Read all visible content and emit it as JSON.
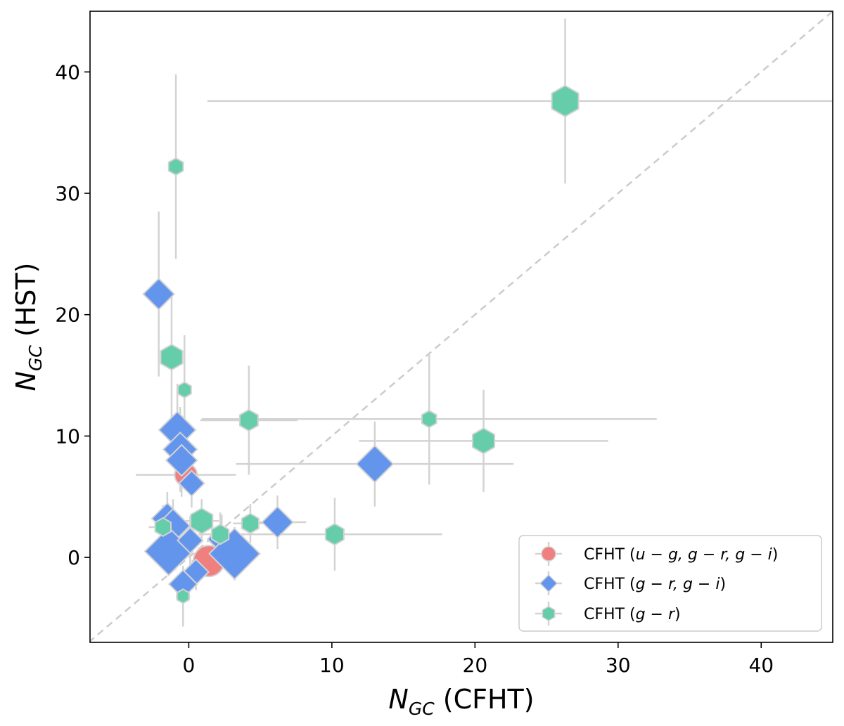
{
  "chart_data": {
    "type": "scatter",
    "title": "",
    "xlabel": {
      "symbol": "N",
      "subscript": "GC",
      "rest": " (CFHT)"
    },
    "ylabel": {
      "symbol": "N",
      "subscript": "GC",
      "rest": " (HST)"
    },
    "xlim": [
      -6.9,
      45
    ],
    "ylim": [
      -7,
      45
    ],
    "xticks": [
      0,
      10,
      20,
      30,
      40
    ],
    "yticks": [
      0,
      10,
      20,
      30,
      40
    ],
    "grid": false,
    "one_to_one_line": true,
    "legend_position": "bottom-right",
    "colors": {
      "errorbar": "#d3d3d3",
      "edge": "#d3d3d3",
      "diagonal": "#cccccc"
    },
    "series": [
      {
        "name": "ugr",
        "label_prefix": "CFHT (",
        "label_math": "u − g, g − r, g − i",
        "label_suffix": ")",
        "marker": "circle",
        "color": "#f08080",
        "points": [
          {
            "x": -0.2,
            "y": 6.8,
            "xerr": 3.5,
            "yerr": 0.7,
            "size": 16
          },
          {
            "x": 1.4,
            "y": -0.3,
            "xerr": 1.2,
            "yerr": 1.0,
            "size": 22
          }
        ]
      },
      {
        "name": "gr_gi",
        "label_prefix": "CFHT (",
        "label_math": "g − r, g − i",
        "label_suffix": ")",
        "marker": "diamond",
        "color": "#6495ed",
        "points": [
          {
            "x": -2.1,
            "y": 21.7,
            "xerr": 0.5,
            "yerr": 6.8,
            "size": 22
          },
          {
            "x": -0.8,
            "y": 10.5,
            "xerr": 0.5,
            "yerr": 3.8,
            "size": 26
          },
          {
            "x": -0.6,
            "y": 8.9,
            "xerr": 0.5,
            "yerr": 3.5,
            "size": 24
          },
          {
            "x": -0.5,
            "y": 8.0,
            "xerr": 0.5,
            "yerr": 3.0,
            "size": 22
          },
          {
            "x": 0.2,
            "y": 6.1,
            "xerr": 0.6,
            "yerr": 2.0,
            "size": 18
          },
          {
            "x": 13.0,
            "y": 7.7,
            "xerr": 9.7,
            "yerr": 3.5,
            "size": 26
          },
          {
            "x": 6.2,
            "y": 2.9,
            "xerr": 2.0,
            "yerr": 2.2,
            "size": 22
          },
          {
            "x": -1.5,
            "y": 3.2,
            "xerr": 1.0,
            "yerr": 2.2,
            "size": 22
          },
          {
            "x": -1.1,
            "y": 2.6,
            "xerr": 1.0,
            "yerr": 2.2,
            "size": 24
          },
          {
            "x": -1.4,
            "y": 0.5,
            "xerr": 1.5,
            "yerr": 2.0,
            "size": 34
          },
          {
            "x": 0.1,
            "y": 1.4,
            "xerr": 0.8,
            "yerr": 2.0,
            "size": 18
          },
          {
            "x": 2.3,
            "y": 1.5,
            "xerr": 1.0,
            "yerr": 2.0,
            "size": 20
          },
          {
            "x": 3.2,
            "y": 0.3,
            "xerr": 1.8,
            "yerr": 2.2,
            "size": 36
          },
          {
            "x": 0.5,
            "y": -1.2,
            "xerr": 1.0,
            "yerr": 1.5,
            "size": 18
          },
          {
            "x": -0.4,
            "y": -2.2,
            "xerr": 0.8,
            "yerr": 1.5,
            "size": 20
          }
        ]
      },
      {
        "name": "gr",
        "label_prefix": "CFHT (",
        "label_math": "g − r",
        "label_suffix": ")",
        "marker": "hexagon",
        "color": "#66cdaa",
        "points": [
          {
            "x": 26.3,
            "y": 37.6,
            "xerr": 25.0,
            "yerr": 6.8,
            "size": 22
          },
          {
            "x": -0.9,
            "y": 32.2,
            "xerr": 0.3,
            "yerr": 7.6,
            "size": 12
          },
          {
            "x": -1.2,
            "y": 16.5,
            "xerr": 0.5,
            "yerr": 5.3,
            "size": 18
          },
          {
            "x": -0.3,
            "y": 13.8,
            "xerr": 0.3,
            "yerr": 4.5,
            "size": 11
          },
          {
            "x": 4.2,
            "y": 11.3,
            "xerr": 3.4,
            "yerr": 4.5,
            "size": 15
          },
          {
            "x": 16.8,
            "y": 11.4,
            "xerr": 15.9,
            "yerr": 5.4,
            "size": 12
          },
          {
            "x": 20.6,
            "y": 9.6,
            "xerr": 8.7,
            "yerr": 4.2,
            "size": 18
          },
          {
            "x": 0.9,
            "y": 3.0,
            "xerr": 1.2,
            "yerr": 1.8,
            "size": 18
          },
          {
            "x": 4.3,
            "y": 2.8,
            "xerr": 1.2,
            "yerr": 1.6,
            "size": 14
          },
          {
            "x": -1.8,
            "y": 2.5,
            "xerr": 1.0,
            "yerr": 1.8,
            "size": 13
          },
          {
            "x": 2.2,
            "y": 1.9,
            "xerr": 1.5,
            "yerr": 1.8,
            "size": 14
          },
          {
            "x": 10.2,
            "y": 1.9,
            "xerr": 7.5,
            "yerr": 3.0,
            "size": 15
          },
          {
            "x": -0.4,
            "y": -3.2,
            "xerr": 0.5,
            "yerr": 2.5,
            "size": 10
          }
        ]
      }
    ]
  }
}
